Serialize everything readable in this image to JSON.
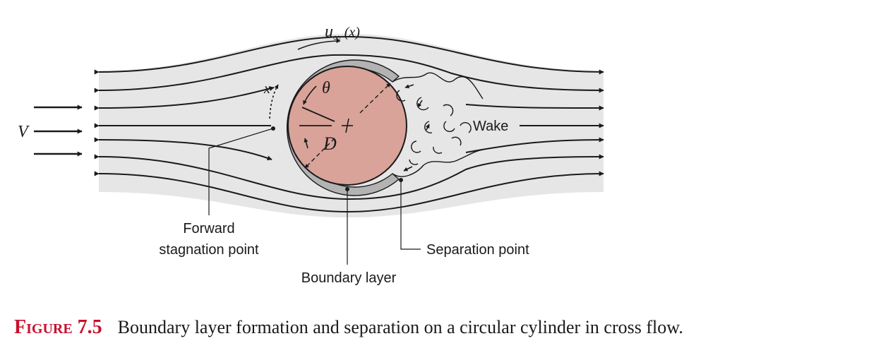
{
  "labels": {
    "free_stream_velocity": "V",
    "local_velocity_u": "u",
    "local_velocity_sub": "∞",
    "local_velocity_arg": "(x)",
    "coordinate_x": "x",
    "angle_theta": "θ",
    "diameter": "D",
    "wake": "Wake",
    "forward_stagnation_line1": "Forward",
    "forward_stagnation_line2": "stagnation point",
    "separation_point": "Separation point",
    "boundary_layer": "Boundary layer"
  },
  "caption": {
    "label": "Figure 7.5",
    "text": "Boundary layer formation and separation on a circular cylinder in cross flow."
  },
  "colors": {
    "flow_region": "#e6e6e6",
    "cylinder": "#d9a399",
    "boundary_layer": "#b3b3b3",
    "caption_label": "#c8102e"
  }
}
